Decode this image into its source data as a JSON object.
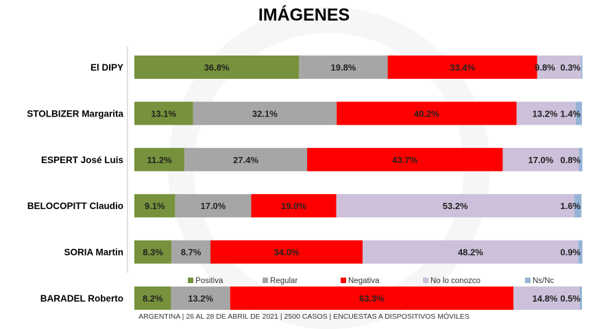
{
  "chart_data": {
    "type": "bar",
    "stacked": true,
    "orientation": "horizontal",
    "title": "IMÁGENES",
    "xlabel": "",
    "ylabel": "",
    "xlim": [
      0,
      100
    ],
    "legend_position": "bottom",
    "categories": [
      "El DIPY",
      "STOLBIZER Margarita",
      "ESPERT José Luis",
      "BELOCOPITT Claudio",
      "SORIA Martin",
      "BARADEL Roberto"
    ],
    "series": [
      {
        "name": "Positiva",
        "color": "#76923c",
        "values": [
          36.8,
          13.1,
          11.2,
          9.1,
          8.3,
          8.2
        ],
        "labels": [
          "36.8%",
          "13.1%",
          "11.2%",
          "9.1%",
          "8.3%",
          "8.2%"
        ]
      },
      {
        "name": "Regular",
        "color": "#a6a6a6",
        "values": [
          19.8,
          32.1,
          27.4,
          17.0,
          8.7,
          13.2
        ],
        "labels": [
          "19.8%",
          "32.1%",
          "27.4%",
          "17.0%",
          "8.7%",
          "13.2%"
        ]
      },
      {
        "name": "Negativa",
        "color": "#ff0000",
        "values": [
          33.4,
          40.2,
          43.7,
          19.0,
          34.0,
          63.3
        ],
        "labels": [
          "33.4%",
          "40.2%",
          "43.7%",
          "19.0%",
          "34.0%",
          "63.3%"
        ]
      },
      {
        "name": "No lo conozco",
        "color": "#ccc0da",
        "values": [
          9.8,
          13.2,
          17.0,
          53.2,
          48.2,
          14.8
        ],
        "labels": [
          "9.8%",
          "13.2%",
          "17.0%",
          "53.2%",
          "48.2%",
          "14.8%"
        ]
      },
      {
        "name": "Ns/Nc",
        "color": "#95b3d7",
        "values": [
          0.3,
          1.4,
          0.8,
          1.6,
          0.9,
          0.5
        ],
        "labels": [
          "0.3%",
          "1.4%",
          "0.8%",
          "1.6%",
          "0.9%",
          "0.5%"
        ]
      }
    ]
  },
  "footer": "ARGENTINA | 26 AL 28 DE ABRIL DE 2021 | 2500 CASOS | ENCUESTAS A DISPOSITIVOS MÓVILES"
}
